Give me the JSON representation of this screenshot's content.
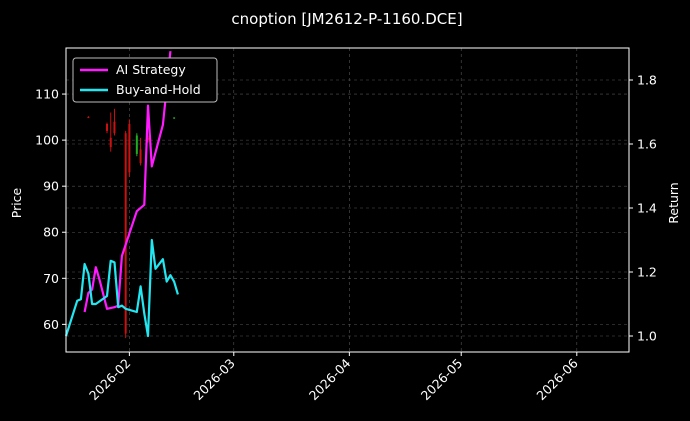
{
  "chart_data": {
    "type": "line",
    "title": "cnoption [JM2612-P-1160.DCE]",
    "ylabel_left": "Price",
    "ylabel_right": "Return",
    "x_ticks": [
      "2026-02",
      "2026-03",
      "2026-04",
      "2026-05",
      "2026-06"
    ],
    "y_left_ticks": [
      60,
      70,
      80,
      90,
      100,
      110
    ],
    "y_right_ticks": [
      "1.0",
      "1.2",
      "1.4",
      "1.6",
      "1.8"
    ],
    "xlim": [
      "2026-01-15",
      "2026-06-15"
    ],
    "y_left_lim": [
      54,
      120
    ],
    "y_right_lim": [
      0.95,
      1.9
    ],
    "grid": true,
    "legend_placement": "top-left",
    "colors": {
      "background": "#000000",
      "ai_strategy": "#ff1aff",
      "buy_and_hold": "#22e6f0",
      "candle_up": "#22aa22",
      "candle_down": "#cc1111",
      "grid": "#555555",
      "axis": "#ffffff"
    },
    "candles": [
      {
        "date": "2026-01-21",
        "open": 105,
        "high": 105.2,
        "low": 104.8,
        "close": 104.9
      },
      {
        "date": "2026-01-26",
        "open": 103.5,
        "high": 103.8,
        "low": 101.5,
        "close": 102
      },
      {
        "date": "2026-01-27",
        "open": 100.5,
        "high": 106,
        "low": 97.5,
        "close": 98.5
      },
      {
        "date": "2026-01-28",
        "open": 104,
        "high": 106.8,
        "low": 101,
        "close": 101.5
      },
      {
        "date": "2026-01-31",
        "open": 101.5,
        "high": 102,
        "low": 57,
        "close": 58
      },
      {
        "date": "2026-02-01",
        "open": 103.5,
        "high": 104.5,
        "low": 92,
        "close": 93
      },
      {
        "date": "2026-02-03",
        "open": 97,
        "high": 101.5,
        "low": 96.5,
        "close": 101
      },
      {
        "date": "2026-02-04",
        "open": 98,
        "high": 100.5,
        "low": 94.5,
        "close": 95
      },
      {
        "date": "2026-02-06",
        "open": 100.5,
        "high": 101,
        "low": 99.5,
        "close": 100
      },
      {
        "date": "2026-02-13",
        "open": 104.8,
        "high": 105,
        "low": 104.6,
        "close": 104.9
      }
    ],
    "series": [
      {
        "name": "AI Strategy",
        "axis": "right",
        "x": [
          "2026-01-20",
          "2026-01-21",
          "2026-01-22",
          "2026-01-23",
          "2026-01-24",
          "2026-01-26",
          "2026-01-28",
          "2026-01-29",
          "2026-01-30",
          "2026-02-03",
          "2026-02-05",
          "2026-02-06",
          "2026-02-07",
          "2026-02-10",
          "2026-02-12"
        ],
        "values": [
          1.075,
          1.135,
          1.145,
          1.215,
          1.175,
          1.085,
          1.09,
          1.095,
          1.25,
          1.39,
          1.41,
          1.72,
          1.53,
          1.66,
          1.89
        ]
      },
      {
        "name": "Buy-and-Hold",
        "axis": "right",
        "x": [
          "2026-01-15",
          "2026-01-18",
          "2026-01-19",
          "2026-01-20",
          "2026-01-21",
          "2026-01-22",
          "2026-01-23",
          "2026-01-26",
          "2026-01-27",
          "2026-01-28",
          "2026-01-29",
          "2026-01-30",
          "2026-01-31",
          "2026-02-03",
          "2026-02-04",
          "2026-02-05",
          "2026-02-06",
          "2026-02-07",
          "2026-02-08",
          "2026-02-10",
          "2026-02-11",
          "2026-02-12",
          "2026-02-13",
          "2026-02-14"
        ],
        "values": [
          1.0,
          1.11,
          1.115,
          1.225,
          1.195,
          1.1,
          1.1,
          1.125,
          1.235,
          1.23,
          1.09,
          1.095,
          1.085,
          1.075,
          1.155,
          1.07,
          1.0,
          1.3,
          1.21,
          1.24,
          1.17,
          1.19,
          1.17,
          1.13
        ]
      }
    ]
  }
}
